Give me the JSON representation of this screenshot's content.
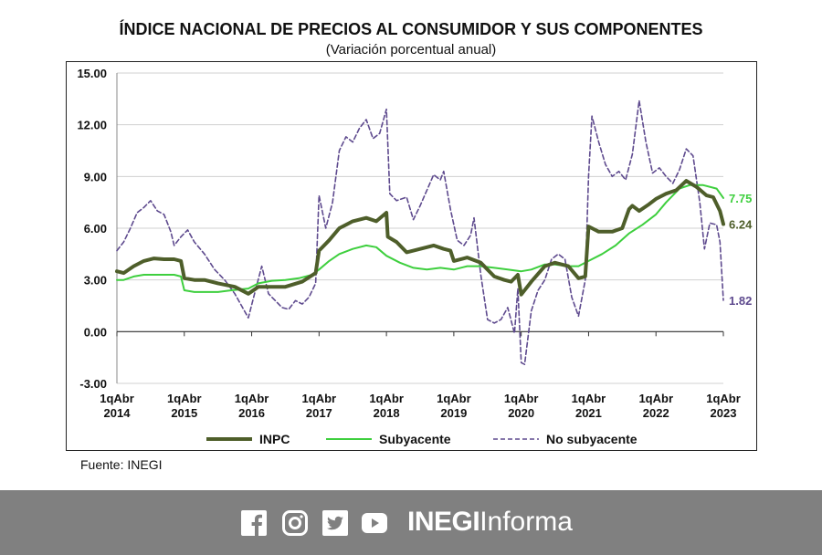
{
  "header": {
    "title": "ÍNDICE NACIONAL DE PRECIOS AL CONSUMIDOR Y SUS COMPONENTES",
    "subtitle": "(Variación porcentual anual)"
  },
  "source": "Fuente: INEGI",
  "footer": {
    "icons": [
      "facebook-icon",
      "instagram-icon",
      "twitter-icon",
      "youtube-icon"
    ],
    "brand_bold": "INEGI",
    "brand_light": "Informa",
    "background": "#808080"
  },
  "chart_data": {
    "type": "line",
    "ylim": [
      -3,
      15
    ],
    "yticks": [
      -3,
      0,
      3,
      6,
      9,
      12,
      15
    ],
    "ytick_labels": [
      "-3.00",
      "0.00",
      "3.00",
      "6.00",
      "9.00",
      "12.00",
      "15.00"
    ],
    "xtick_labels": [
      [
        "1qAbr",
        "2014"
      ],
      [
        "1qAbr",
        "2015"
      ],
      [
        "1qAbr",
        "2016"
      ],
      [
        "1qAbr",
        "2017"
      ],
      [
        "1qAbr",
        "2018"
      ],
      [
        "1qAbr",
        "2019"
      ],
      [
        "1qAbr",
        "2020"
      ],
      [
        "1qAbr",
        "2021"
      ],
      [
        "1qAbr",
        "2022"
      ],
      [
        "1qAbr",
        "2023"
      ]
    ],
    "xtick_years": [
      2014,
      2015,
      2016,
      2017,
      2018,
      2019,
      2020,
      2021,
      2022,
      2023
    ],
    "grid": "horizontal",
    "legend_position": "bottom",
    "series": [
      {
        "name": "INPC",
        "color": "#4e5e2a",
        "style": "solid-thick",
        "end_label": "6.24",
        "points": [
          [
            2014.0,
            3.5
          ],
          [
            2014.1,
            3.4
          ],
          [
            2014.25,
            3.8
          ],
          [
            2014.4,
            4.1
          ],
          [
            2014.55,
            4.25
          ],
          [
            2014.7,
            4.2
          ],
          [
            2014.85,
            4.2
          ],
          [
            2014.95,
            4.1
          ],
          [
            2015.0,
            3.1
          ],
          [
            2015.15,
            3.0
          ],
          [
            2015.3,
            3.0
          ],
          [
            2015.5,
            2.8
          ],
          [
            2015.75,
            2.6
          ],
          [
            2015.95,
            2.2
          ],
          [
            2016.1,
            2.6
          ],
          [
            2016.3,
            2.6
          ],
          [
            2016.5,
            2.6
          ],
          [
            2016.75,
            2.9
          ],
          [
            2016.95,
            3.4
          ],
          [
            2017.0,
            4.7
          ],
          [
            2017.15,
            5.3
          ],
          [
            2017.3,
            6.0
          ],
          [
            2017.5,
            6.4
          ],
          [
            2017.7,
            6.6
          ],
          [
            2017.85,
            6.4
          ],
          [
            2018.0,
            6.9
          ],
          [
            2018.02,
            5.5
          ],
          [
            2018.15,
            5.2
          ],
          [
            2018.3,
            4.6
          ],
          [
            2018.5,
            4.8
          ],
          [
            2018.7,
            5.0
          ],
          [
            2018.85,
            4.8
          ],
          [
            2018.95,
            4.7
          ],
          [
            2019.0,
            4.1
          ],
          [
            2019.2,
            4.3
          ],
          [
            2019.4,
            4.0
          ],
          [
            2019.6,
            3.2
          ],
          [
            2019.75,
            3.0
          ],
          [
            2019.85,
            2.9
          ],
          [
            2019.95,
            3.3
          ],
          [
            2020.0,
            2.15
          ],
          [
            2020.15,
            2.9
          ],
          [
            2020.35,
            3.8
          ],
          [
            2020.5,
            4.0
          ],
          [
            2020.7,
            3.8
          ],
          [
            2020.85,
            3.1
          ],
          [
            2020.95,
            3.2
          ],
          [
            2021.0,
            6.1
          ],
          [
            2021.15,
            5.8
          ],
          [
            2021.35,
            5.8
          ],
          [
            2021.5,
            6.0
          ],
          [
            2021.6,
            7.1
          ],
          [
            2021.65,
            7.3
          ],
          [
            2021.75,
            7.0
          ],
          [
            2021.9,
            7.4
          ],
          [
            2022.0,
            7.7
          ],
          [
            2022.15,
            8.0
          ],
          [
            2022.3,
            8.2
          ],
          [
            2022.45,
            8.75
          ],
          [
            2022.6,
            8.4
          ],
          [
            2022.75,
            7.9
          ],
          [
            2022.85,
            7.8
          ],
          [
            2022.95,
            7.0
          ],
          [
            2023.0,
            6.24
          ]
        ]
      },
      {
        "name": "Subyacente",
        "color": "#3ecf3e",
        "style": "solid",
        "end_label": "7.75",
        "points": [
          [
            2014.0,
            3.0
          ],
          [
            2014.1,
            3.0
          ],
          [
            2014.25,
            3.2
          ],
          [
            2014.4,
            3.3
          ],
          [
            2014.6,
            3.3
          ],
          [
            2014.85,
            3.3
          ],
          [
            2014.95,
            3.2
          ],
          [
            2015.0,
            2.4
          ],
          [
            2015.15,
            2.3
          ],
          [
            2015.3,
            2.3
          ],
          [
            2015.5,
            2.3
          ],
          [
            2015.7,
            2.4
          ],
          [
            2015.95,
            2.5
          ],
          [
            2016.1,
            2.8
          ],
          [
            2016.3,
            2.95
          ],
          [
            2016.5,
            3.0
          ],
          [
            2016.7,
            3.1
          ],
          [
            2016.9,
            3.3
          ],
          [
            2017.0,
            3.6
          ],
          [
            2017.15,
            4.1
          ],
          [
            2017.3,
            4.5
          ],
          [
            2017.5,
            4.8
          ],
          [
            2017.7,
            5.0
          ],
          [
            2017.85,
            4.9
          ],
          [
            2018.0,
            4.4
          ],
          [
            2018.2,
            4.0
          ],
          [
            2018.4,
            3.7
          ],
          [
            2018.6,
            3.6
          ],
          [
            2018.8,
            3.7
          ],
          [
            2019.0,
            3.6
          ],
          [
            2019.2,
            3.8
          ],
          [
            2019.4,
            3.8
          ],
          [
            2019.6,
            3.7
          ],
          [
            2019.8,
            3.6
          ],
          [
            2020.0,
            3.5
          ],
          [
            2020.15,
            3.6
          ],
          [
            2020.35,
            3.9
          ],
          [
            2020.5,
            3.9
          ],
          [
            2020.7,
            3.8
          ],
          [
            2020.85,
            3.8
          ],
          [
            2021.0,
            4.1
          ],
          [
            2021.2,
            4.5
          ],
          [
            2021.4,
            5.0
          ],
          [
            2021.6,
            5.7
          ],
          [
            2021.8,
            6.2
          ],
          [
            2022.0,
            6.8
          ],
          [
            2022.15,
            7.5
          ],
          [
            2022.35,
            8.3
          ],
          [
            2022.5,
            8.5
          ],
          [
            2022.7,
            8.5
          ],
          [
            2022.9,
            8.3
          ],
          [
            2023.0,
            7.75
          ]
        ]
      },
      {
        "name": "No subyacente",
        "color": "#5e4a8e",
        "style": "dashed",
        "end_label": "1.82",
        "points": [
          [
            2014.0,
            4.7
          ],
          [
            2014.1,
            5.2
          ],
          [
            2014.2,
            6.0
          ],
          [
            2014.3,
            6.9
          ],
          [
            2014.4,
            7.2
          ],
          [
            2014.5,
            7.6
          ],
          [
            2014.6,
            7.0
          ],
          [
            2014.7,
            6.8
          ],
          [
            2014.8,
            5.8
          ],
          [
            2014.85,
            5.0
          ],
          [
            2014.95,
            5.5
          ],
          [
            2015.05,
            5.9
          ],
          [
            2015.15,
            5.2
          ],
          [
            2015.3,
            4.5
          ],
          [
            2015.45,
            3.6
          ],
          [
            2015.6,
            3.0
          ],
          [
            2015.75,
            2.2
          ],
          [
            2015.85,
            1.5
          ],
          [
            2015.95,
            0.8
          ],
          [
            2016.05,
            2.3
          ],
          [
            2016.15,
            3.8
          ],
          [
            2016.25,
            2.2
          ],
          [
            2016.35,
            1.8
          ],
          [
            2016.45,
            1.4
          ],
          [
            2016.55,
            1.3
          ],
          [
            2016.65,
            1.8
          ],
          [
            2016.75,
            1.6
          ],
          [
            2016.85,
            2.0
          ],
          [
            2016.95,
            2.8
          ],
          [
            2017.0,
            7.9
          ],
          [
            2017.1,
            6.0
          ],
          [
            2017.2,
            7.5
          ],
          [
            2017.3,
            10.5
          ],
          [
            2017.4,
            11.3
          ],
          [
            2017.5,
            11.0
          ],
          [
            2017.6,
            11.8
          ],
          [
            2017.7,
            12.3
          ],
          [
            2017.8,
            11.2
          ],
          [
            2017.9,
            11.5
          ],
          [
            2018.0,
            12.9
          ],
          [
            2018.05,
            8.0
          ],
          [
            2018.15,
            7.6
          ],
          [
            2018.3,
            7.8
          ],
          [
            2018.4,
            6.5
          ],
          [
            2018.5,
            7.3
          ],
          [
            2018.6,
            8.2
          ],
          [
            2018.7,
            9.1
          ],
          [
            2018.8,
            8.8
          ],
          [
            2018.85,
            9.3
          ],
          [
            2018.95,
            7.1
          ],
          [
            2019.05,
            5.3
          ],
          [
            2019.15,
            5.0
          ],
          [
            2019.25,
            5.6
          ],
          [
            2019.3,
            6.6
          ],
          [
            2019.4,
            3.3
          ],
          [
            2019.5,
            0.7
          ],
          [
            2019.6,
            0.5
          ],
          [
            2019.7,
            0.7
          ],
          [
            2019.8,
            1.4
          ],
          [
            2019.9,
            -0.1
          ],
          [
            2019.95,
            2.5
          ],
          [
            2020.0,
            -1.8
          ],
          [
            2020.05,
            -1.9
          ],
          [
            2020.15,
            1.2
          ],
          [
            2020.25,
            2.4
          ],
          [
            2020.35,
            3.0
          ],
          [
            2020.45,
            4.2
          ],
          [
            2020.55,
            4.5
          ],
          [
            2020.65,
            4.2
          ],
          [
            2020.75,
            2.0
          ],
          [
            2020.85,
            0.9
          ],
          [
            2020.95,
            3.0
          ],
          [
            2021.0,
            9.0
          ],
          [
            2021.05,
            12.5
          ],
          [
            2021.15,
            11.0
          ],
          [
            2021.25,
            9.7
          ],
          [
            2021.35,
            9.0
          ],
          [
            2021.45,
            9.3
          ],
          [
            2021.55,
            8.8
          ],
          [
            2021.65,
            10.3
          ],
          [
            2021.75,
            13.4
          ],
          [
            2021.85,
            11.0
          ],
          [
            2021.95,
            9.2
          ],
          [
            2022.05,
            9.5
          ],
          [
            2022.15,
            9.0
          ],
          [
            2022.25,
            8.6
          ],
          [
            2022.35,
            9.4
          ],
          [
            2022.45,
            10.6
          ],
          [
            2022.55,
            10.2
          ],
          [
            2022.65,
            7.5
          ],
          [
            2022.72,
            4.8
          ],
          [
            2022.8,
            6.3
          ],
          [
            2022.9,
            6.2
          ],
          [
            2022.95,
            5.2
          ],
          [
            2023.0,
            1.82
          ]
        ]
      }
    ]
  }
}
